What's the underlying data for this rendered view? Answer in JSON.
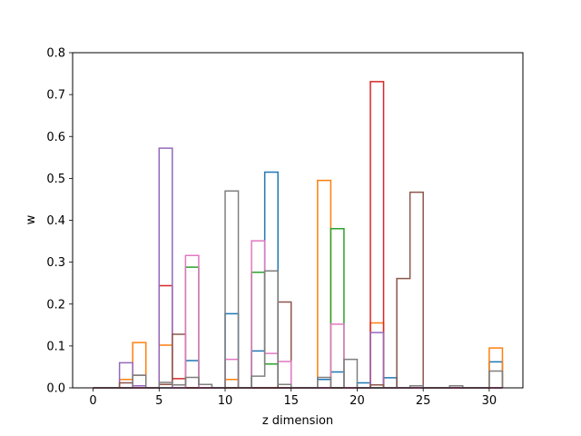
{
  "chart_data": {
    "type": "histogram-step",
    "xlabel": "z dimension",
    "ylabel": "w",
    "xlim": [
      -1.55,
      32.55
    ],
    "ylim": [
      0,
      0.8
    ],
    "x_ticks": [
      0,
      5,
      10,
      15,
      20,
      25,
      30
    ],
    "y_ticks": [
      0.0,
      0.1,
      0.2,
      0.3,
      0.4,
      0.5,
      0.6,
      0.7,
      0.8
    ],
    "grid": false,
    "legend": "none",
    "bin_edges": [
      0,
      1,
      2,
      3,
      4,
      5,
      6,
      7,
      8,
      9,
      10,
      11,
      12,
      13,
      14,
      15,
      16,
      17,
      18,
      19,
      20,
      21,
      22,
      23,
      24,
      25,
      26,
      27,
      28,
      29,
      30,
      31
    ],
    "series": [
      {
        "color": "#1f77b4",
        "values": [
          0,
          0,
          0,
          0,
          0,
          0,
          0,
          0.065,
          0,
          0,
          0.177,
          0,
          0.088,
          0.515,
          0,
          0,
          0,
          0.02,
          0.038,
          0,
          0.012,
          0,
          0.024,
          0,
          0,
          0,
          0,
          0,
          0,
          0,
          0.062
        ]
      },
      {
        "color": "#ff7f0e",
        "values": [
          0,
          0,
          0.02,
          0.108,
          0,
          0.102,
          0,
          0,
          0,
          0,
          0.02,
          0,
          0,
          0,
          0,
          0,
          0,
          0.495,
          0,
          0,
          0,
          0.155,
          0,
          0,
          0,
          0,
          0,
          0,
          0,
          0,
          0.095
        ]
      },
      {
        "color": "#2ca02c",
        "values": [
          0,
          0,
          0,
          0,
          0,
          0,
          0,
          0.288,
          0,
          0,
          0,
          0,
          0.276,
          0.057,
          0,
          0,
          0,
          0,
          0.38,
          0,
          0,
          0,
          0,
          0,
          0,
          0,
          0,
          0,
          0,
          0,
          0
        ]
      },
      {
        "color": "#d62728",
        "values": [
          0,
          0,
          0,
          0,
          0,
          0.244,
          0.022,
          0,
          0,
          0,
          0,
          0,
          0,
          0,
          0,
          0,
          0,
          0,
          0,
          0,
          0,
          0.731,
          0,
          0,
          0,
          0,
          0,
          0,
          0,
          0,
          0
        ]
      },
      {
        "color": "#9467bd",
        "values": [
          0,
          0,
          0.06,
          0.005,
          0,
          0.572,
          0,
          0,
          0,
          0,
          0,
          0,
          0,
          0,
          0,
          0,
          0,
          0,
          0,
          0,
          0,
          0.132,
          0,
          0,
          0,
          0,
          0,
          0,
          0,
          0,
          0
        ]
      },
      {
        "color": "#8c564b",
        "values": [
          0,
          0,
          0.012,
          0.03,
          0,
          0.008,
          0.128,
          0,
          0,
          0,
          0,
          0,
          0,
          0,
          0.205,
          0,
          0,
          0,
          0,
          0,
          0,
          0.007,
          0,
          0.261,
          0.467,
          0,
          0,
          0,
          0,
          0,
          0
        ]
      },
      {
        "color": "#e377c2",
        "values": [
          0,
          0,
          0,
          0,
          0,
          0,
          0,
          0.316,
          0,
          0,
          0.068,
          0,
          0.351,
          0.082,
          0.063,
          0,
          0,
          0,
          0.152,
          0,
          0,
          0,
          0,
          0,
          0,
          0,
          0,
          0,
          0,
          0,
          0
        ]
      },
      {
        "color": "#7f7f7f",
        "values": [
          0,
          0,
          0,
          0.03,
          0,
          0.013,
          0.007,
          0.025,
          0.008,
          0,
          0.47,
          0,
          0.028,
          0.279,
          0.008,
          0,
          0,
          0.025,
          0,
          0.068,
          0,
          0,
          0,
          0,
          0.005,
          0,
          0,
          0.005,
          0,
          0,
          0.04
        ]
      }
    ]
  }
}
